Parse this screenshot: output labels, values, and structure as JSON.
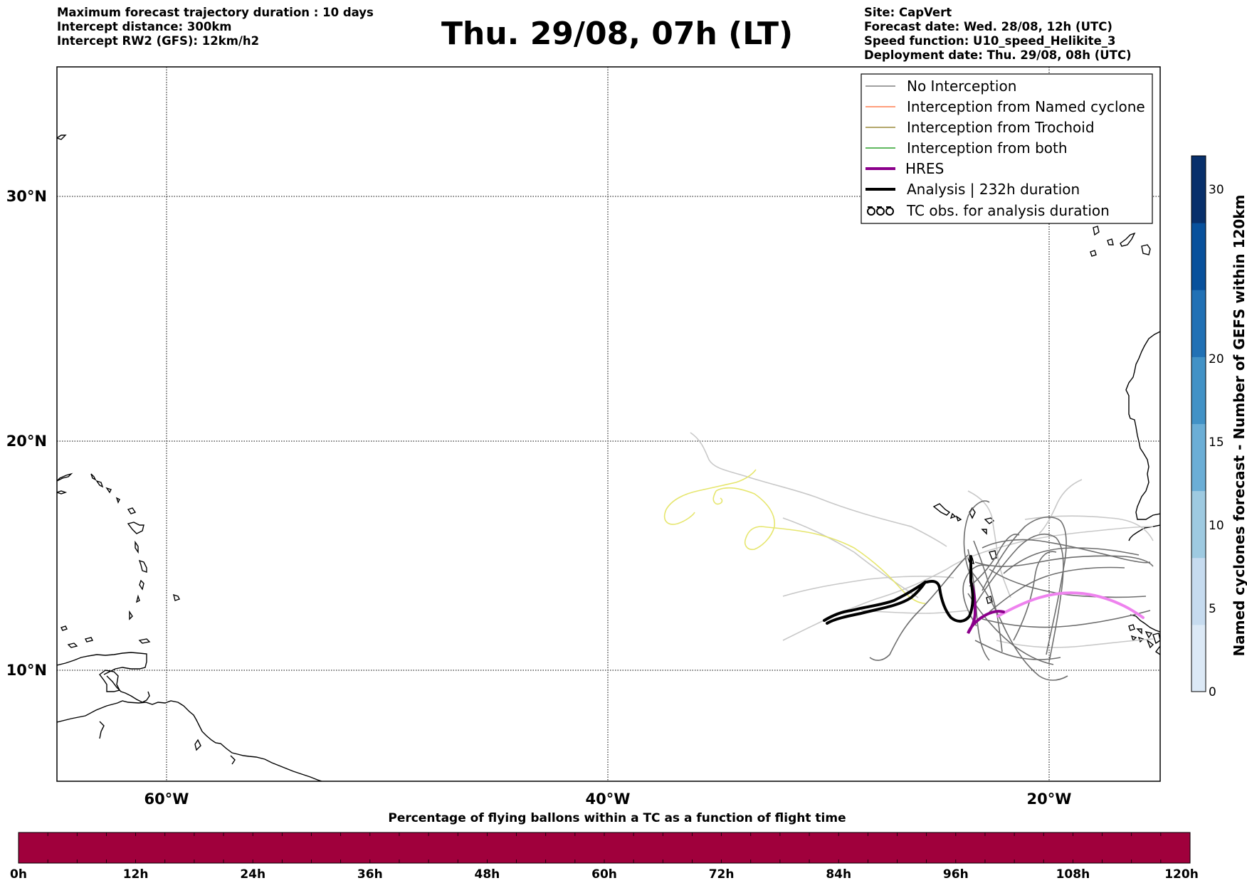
{
  "header": {
    "left_lines": [
      "Maximum forecast trajectory duration : 10 days",
      "Intercept distance: 300km",
      "Intercept RW2 (GFS):  12km/h2"
    ],
    "title": "Thu. 29/08, 07h (LT)",
    "right_lines": [
      "Site: CapVert",
      "Forecast date: Wed. 28/08, 12h (UTC)",
      "Speed function: U10_speed_Helikite_3",
      "Deployment date: Thu. 29/08, 08h (UTC)"
    ]
  },
  "map": {
    "lat_labels": [
      "30°N",
      "20°N",
      "10°N"
    ],
    "lon_labels": [
      "60°W",
      "40°W",
      "20°W"
    ],
    "grid": true
  },
  "legend": {
    "items": [
      {
        "label": "No Interception",
        "color": "#808080",
        "style": "thin"
      },
      {
        "label": "Interception from Named cyclone",
        "color": "#ff7f50",
        "style": "thin"
      },
      {
        "label": "Interception from Trochoid",
        "color": "#9a8a3a",
        "style": "thin"
      },
      {
        "label": "Interception from both",
        "color": "#2ca02c",
        "style": "thin"
      },
      {
        "label": "HRES",
        "color": "#8b008b",
        "style": "thick"
      },
      {
        "label": "Analysis | 232h duration",
        "color": "#000000",
        "style": "thick"
      },
      {
        "label": "TC obs. for analysis duration",
        "color": "#000000",
        "style": "symbol"
      }
    ]
  },
  "colorbar": {
    "label": "Named cyclones forecast - Number of GEFS within 120km",
    "ticks": [
      "0",
      "5",
      "10",
      "15",
      "20",
      "30"
    ],
    "colors": [
      "#dce9f6",
      "#c6dbef",
      "#9ecae1",
      "#6baed6",
      "#4292c6",
      "#2171b5",
      "#08519c",
      "#08306b"
    ]
  },
  "percentage_bar": {
    "title": "Percentage of flying ballons within a TC as a function of flight time",
    "ticks": [
      "0h",
      "12h",
      "24h",
      "36h",
      "48h",
      "60h",
      "72h",
      "84h",
      "96h",
      "108h",
      "120h"
    ],
    "color": "#a0003c"
  }
}
